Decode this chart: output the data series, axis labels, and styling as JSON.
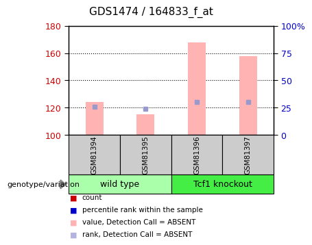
{
  "title": "GDS1474 / 164833_f_at",
  "samples": [
    "GSM81394",
    "GSM81395",
    "GSM81396",
    "GSM81397"
  ],
  "bar_values": [
    124,
    115,
    168,
    158
  ],
  "bar_bottom": 100,
  "rank_values": [
    26,
    24,
    30,
    30
  ],
  "ylim_left": [
    100,
    180
  ],
  "ylim_right": [
    0,
    100
  ],
  "yticks_left": [
    100,
    120,
    140,
    160,
    180
  ],
  "yticks_right": [
    0,
    25,
    50,
    75,
    100
  ],
  "ytick_labels_right": [
    "0",
    "25",
    "50",
    "75",
    "100%"
  ],
  "bar_color": "#ffb3b3",
  "rank_color": "#9999cc",
  "groups": [
    {
      "label": "wild type",
      "samples": [
        0,
        1
      ],
      "color": "#aaffaa"
    },
    {
      "label": "Tcf1 knockout",
      "samples": [
        2,
        3
      ],
      "color": "#44ee44"
    }
  ],
  "legend_items": [
    {
      "label": "count",
      "color": "#cc0000"
    },
    {
      "label": "percentile rank within the sample",
      "color": "#0000cc"
    },
    {
      "label": "value, Detection Call = ABSENT",
      "color": "#ffb3b3"
    },
    {
      "label": "rank, Detection Call = ABSENT",
      "color": "#b3b3dd"
    }
  ],
  "xlabel_genotype": "genotype/variation",
  "left_ylabel_color": "#cc0000",
  "right_ylabel_color": "#0000cc",
  "sample_box_color": "#cccccc",
  "title_fontsize": 11,
  "tick_fontsize": 9,
  "legend_fontsize": 7.5,
  "sample_fontsize": 7.5,
  "group_fontsize": 9
}
